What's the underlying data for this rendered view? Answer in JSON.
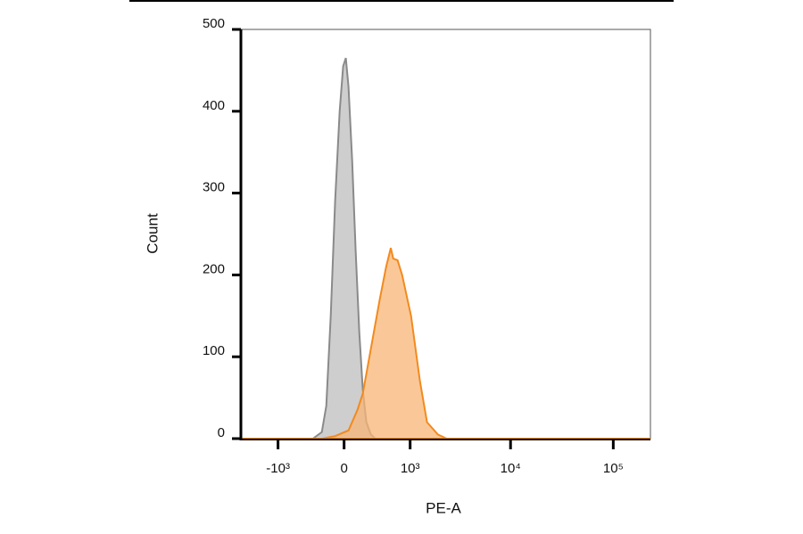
{
  "chart_data": {
    "type": "area",
    "xlabel": "PE-A",
    "ylabel": "Count",
    "xscale": "biexponential",
    "xlim": [
      -2400,
      230000
    ],
    "xticks": [
      {
        "value": -1000,
        "label": "-10³"
      },
      0,
      {
        "value": 1000,
        "label": "10³"
      },
      {
        "value": 10000,
        "label": "10⁴"
      },
      {
        "value": 100000,
        "label": "10⁵"
      }
    ],
    "ylim": [
      0,
      500
    ],
    "yticks": [
      0,
      100,
      200,
      300,
      400,
      500
    ],
    "series": [
      {
        "color": "#8a8a8a",
        "fill": "#bdbdbd",
        "x": [
          -364,
          -250,
          -197,
          -146,
          -97,
          -48,
          -10,
          19,
          48,
          87,
          126,
          167,
          207,
          250,
          306,
          364
        ],
        "values": [
          0,
          8,
          40,
          150,
          290,
          400,
          455,
          465,
          430,
          340,
          230,
          130,
          60,
          20,
          5,
          0
        ]
      },
      {
        "color": "#f28a1e",
        "fill": "#f8b676",
        "x": [
          -250,
          -97,
          48,
          146,
          207,
          306,
          426,
          522,
          599,
          641,
          724,
          815,
          914,
          1022,
          1140,
          1270,
          1502,
          1935,
          2372
        ],
        "values": [
          0,
          3,
          10,
          35,
          55,
          110,
          170,
          210,
          233,
          220,
          218,
          200,
          175,
          150,
          110,
          70,
          20,
          5,
          0
        ]
      }
    ]
  }
}
